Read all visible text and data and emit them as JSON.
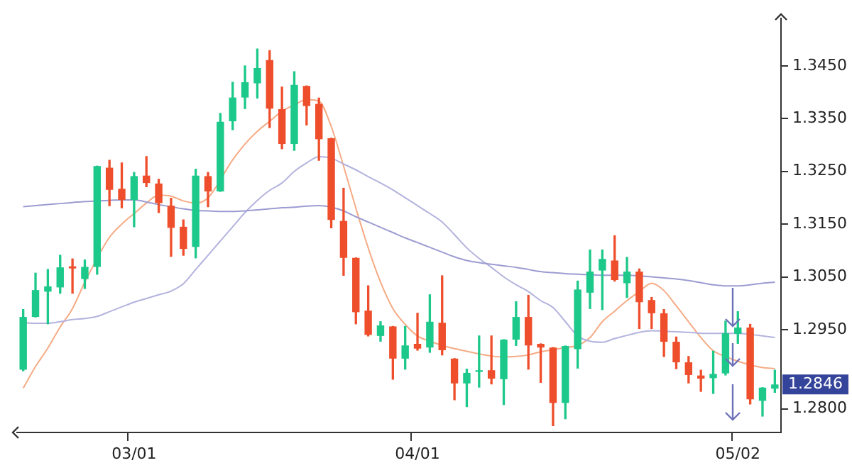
{
  "chart_data": {
    "type": "candlestick",
    "categories": [
      null,
      null,
      null,
      null,
      null,
      null,
      null,
      null,
      null,
      "03/01",
      null,
      null,
      null,
      null,
      null,
      null,
      null,
      null,
      null,
      null,
      null,
      null,
      null,
      null,
      null,
      null,
      null,
      null,
      null,
      null,
      null,
      null,
      "04/01",
      null,
      null,
      null,
      null,
      null,
      null,
      null,
      null,
      null,
      null,
      null,
      null,
      null,
      null,
      null,
      null,
      null,
      null,
      null,
      null,
      null,
      null,
      null,
      null,
      null,
      "05/02",
      null,
      null,
      null
    ],
    "ohlc": [
      [
        1.2874,
        1.2988,
        1.2872,
        1.2974
      ],
      [
        1.2974,
        1.3057,
        1.2974,
        1.3025
      ],
      [
        1.3022,
        1.3064,
        1.2961,
        1.3032
      ],
      [
        1.303,
        1.3091,
        1.3019,
        1.3068
      ],
      [
        1.307,
        1.3084,
        1.3019,
        1.3066
      ],
      [
        1.3046,
        1.3082,
        1.3028,
        1.3069
      ],
      [
        1.3069,
        1.326,
        1.3055,
        1.326
      ],
      [
        1.3257,
        1.3271,
        1.3185,
        1.3215
      ],
      [
        1.3217,
        1.3266,
        1.3181,
        1.3196
      ],
      [
        1.3196,
        1.3248,
        1.3145,
        1.3241
      ],
      [
        1.3242,
        1.3278,
        1.3221,
        1.3228
      ],
      [
        1.3227,
        1.3235,
        1.3172,
        1.319
      ],
      [
        1.3185,
        1.3199,
        1.3089,
        1.3143
      ],
      [
        1.3145,
        1.3158,
        1.3091,
        1.3103
      ],
      [
        1.3107,
        1.3254,
        1.3086,
        1.3242
      ],
      [
        1.3241,
        1.3248,
        1.3183,
        1.3212
      ],
      [
        1.3212,
        1.336,
        1.3212,
        1.3344
      ],
      [
        1.3345,
        1.3419,
        1.3329,
        1.339
      ],
      [
        1.339,
        1.345,
        1.3369,
        1.3419
      ],
      [
        1.3417,
        1.3482,
        1.3389,
        1.3446
      ],
      [
        1.3461,
        1.3479,
        1.3333,
        1.3369
      ],
      [
        1.3368,
        1.341,
        1.3293,
        1.3302
      ],
      [
        1.3302,
        1.3439,
        1.329,
        1.3414
      ],
      [
        1.3412,
        1.3412,
        1.3338,
        1.3374
      ],
      [
        1.3378,
        1.3389,
        1.3271,
        1.3311
      ],
      [
        1.3313,
        1.3313,
        1.3143,
        1.3158
      ],
      [
        1.3156,
        1.3218,
        1.3053,
        1.3086
      ],
      [
        1.3086,
        1.3086,
        1.2961,
        1.2983
      ],
      [
        1.2986,
        1.3033,
        1.2938,
        1.294
      ],
      [
        1.2938,
        1.2965,
        1.2928,
        1.2958
      ],
      [
        1.2956,
        1.2956,
        1.2856,
        1.2895
      ],
      [
        1.2895,
        1.2956,
        1.2875,
        1.292
      ],
      [
        1.2923,
        1.2981,
        1.2911,
        1.2914
      ],
      [
        1.2916,
        1.3016,
        1.2907,
        1.2965
      ],
      [
        1.2963,
        1.3052,
        1.2902,
        1.2911
      ],
      [
        1.2895,
        1.2895,
        1.2817,
        1.2848
      ],
      [
        1.2848,
        1.2875,
        1.2804,
        1.2868
      ],
      [
        1.287,
        1.2938,
        1.2841,
        1.2873
      ],
      [
        1.2873,
        1.2938,
        1.2847,
        1.2857
      ],
      [
        1.2856,
        1.2931,
        1.2808,
        1.2931
      ],
      [
        1.2931,
        1.3003,
        1.292,
        1.2974
      ],
      [
        1.2974,
        1.3015,
        1.2875,
        1.292
      ],
      [
        1.2923,
        1.2923,
        1.285,
        1.2916
      ],
      [
        1.2916,
        1.2916,
        1.2768,
        1.2811
      ],
      [
        1.2811,
        1.2919,
        1.2781,
        1.2919
      ],
      [
        1.2913,
        1.3042,
        1.2877,
        1.3026
      ],
      [
        1.302,
        1.3101,
        1.299,
        1.306
      ],
      [
        1.3062,
        1.3101,
        1.2988,
        1.3084
      ],
      [
        1.3081,
        1.3128,
        1.3042,
        1.3044
      ],
      [
        1.3038,
        1.3087,
        1.3011,
        1.306
      ],
      [
        1.306,
        1.3065,
        1.2952,
        1.3002
      ],
      [
        1.3006,
        1.3011,
        1.2952,
        1.2981
      ],
      [
        1.2981,
        1.2988,
        1.2899,
        1.2927
      ],
      [
        1.2927,
        1.2936,
        1.2876,
        1.2888
      ],
      [
        1.2888,
        1.2899,
        1.2849,
        1.2864
      ],
      [
        1.2863,
        1.2873,
        1.2833,
        1.2857
      ],
      [
        1.2858,
        1.2909,
        1.2829,
        1.2866
      ],
      [
        1.2867,
        1.2966,
        1.2864,
        1.2943
      ],
      [
        1.2942,
        1.2984,
        1.2924,
        1.2954
      ],
      [
        1.2954,
        1.296,
        1.2809,
        1.2818
      ],
      [
        1.2815,
        1.284,
        1.2786,
        1.284
      ],
      [
        1.2838,
        1.2873,
        1.2831,
        1.2846
      ]
    ],
    "colors": [
      "#1cc88a",
      "#1cc88a",
      "#1cc88a",
      "#1cc88a",
      "#ee4e2b",
      "#1cc88a",
      "#1cc88a",
      "#ee4e2b",
      "#ee4e2b",
      "#1cc88a",
      "#ee4e2b",
      "#ee4e2b",
      "#ee4e2b",
      "#ee4e2b",
      "#1cc88a",
      "#ee4e2b",
      "#1cc88a",
      "#1cc88a",
      "#1cc88a",
      "#1cc88a",
      "#ee4e2b",
      "#ee4e2b",
      "#1cc88a",
      "#ee4e2b",
      "#ee4e2b",
      "#ee4e2b",
      "#ee4e2b",
      "#ee4e2b",
      "#ee4e2b",
      "#1cc88a",
      "#ee4e2b",
      "#1cc88a",
      "#ee4e2b",
      "#1cc88a",
      "#ee4e2b",
      "#ee4e2b",
      "#1cc88a",
      "#1cc88a",
      "#ee4e2b",
      "#1cc88a",
      "#1cc88a",
      "#ee4e2b",
      "#ee4e2b",
      "#ee4e2b",
      "#1cc88a",
      "#1cc88a",
      "#1cc88a",
      "#1cc88a",
      "#ee4e2b",
      "#1cc88a",
      "#ee4e2b",
      "#ee4e2b",
      "#ee4e2b",
      "#ee4e2b",
      "#ee4e2b",
      "#ee4e2b",
      "#1cc88a",
      "#1cc88a",
      "#1cc88a",
      "#ee4e2b",
      "#1cc88a",
      "#1cc88a"
    ],
    "series": [
      {
        "type": "line",
        "color": "#9c9cd2",
        "values": [
          1.3183,
          1.3185,
          1.3187,
          1.3189,
          1.3191,
          1.3193,
          1.3194,
          1.3195,
          1.3196,
          1.3196,
          1.3192,
          1.3187,
          1.3183,
          1.3179,
          1.3176,
          1.3175,
          1.3174,
          1.3174,
          1.3175,
          1.3177,
          1.3179,
          1.3181,
          1.3182,
          1.3184,
          1.3185,
          1.3182,
          1.3175,
          1.3164,
          1.3154,
          1.3144,
          1.3134,
          1.3124,
          1.3115,
          1.3106,
          1.3097,
          1.3088,
          1.3081,
          1.3077,
          1.3074,
          1.3071,
          1.3068,
          1.3064,
          1.306,
          1.3058,
          1.3056,
          1.3055,
          1.3054,
          1.3053,
          1.3053,
          1.3053,
          1.3052,
          1.305,
          1.3048,
          1.3046,
          1.3043,
          1.3039,
          1.3035,
          1.3033,
          1.3033,
          1.3035,
          1.3038,
          1.304
        ]
      },
      {
        "type": "line",
        "color": "#b3b3de",
        "values": [
          1.2963,
          1.2962,
          1.2962,
          1.2965,
          1.2969,
          1.2971,
          1.2975,
          1.2984,
          1.2993,
          1.3002,
          1.3009,
          1.3016,
          1.3023,
          1.3037,
          1.3064,
          1.3091,
          1.3118,
          1.3145,
          1.3172,
          1.3195,
          1.3214,
          1.3228,
          1.325,
          1.3266,
          1.3278,
          1.3275,
          1.3264,
          1.3253,
          1.324,
          1.3228,
          1.3215,
          1.32,
          1.3185,
          1.317,
          1.3154,
          1.313,
          1.3105,
          1.3085,
          1.3068,
          1.305,
          1.3035,
          1.3022,
          1.3005,
          1.2992,
          1.2965,
          1.2938,
          1.2928,
          1.2926,
          1.2933,
          1.2939,
          1.2945,
          1.2948,
          1.2947,
          1.2946,
          1.2945,
          1.2943,
          1.2943,
          1.2943,
          1.2943,
          1.2941,
          1.2938,
          1.2935
        ]
      },
      {
        "type": "line",
        "color": "#f5ab85",
        "values": [
          1.2839,
          1.288,
          1.2915,
          1.2955,
          1.299,
          1.304,
          null,
          1.3125,
          1.315,
          1.317,
          1.319,
          1.3205,
          1.3203,
          1.3194,
          1.319,
          1.32,
          null,
          1.3272,
          1.3302,
          1.3326,
          1.3345,
          1.3364,
          1.3376,
          1.3386,
          1.3383,
          1.3335,
          1.326,
          1.318,
          1.3105,
          1.304,
          1.299,
          1.296,
          1.2938,
          1.2928,
          1.292,
          1.2914,
          1.2909,
          1.2904,
          1.29,
          1.2898,
          1.2899,
          1.2902,
          1.2908,
          1.2912,
          1.2916,
          1.292,
          1.2935,
          1.2965,
          1.2985,
          1.3005,
          1.3022,
          1.3038,
          1.3024,
          1.2995,
          1.2965,
          1.2935,
          1.291,
          1.2899,
          1.289,
          1.2883,
          1.2878,
          1.2876
        ]
      }
    ],
    "ylim": [
      1.2755,
      1.354
    ],
    "yticks": [
      {
        "value": 1.28,
        "label": "1.2800"
      },
      {
        "value": 1.295,
        "label": "1.2950"
      },
      {
        "value": 1.305,
        "label": "1.3050"
      },
      {
        "value": 1.315,
        "label": "1.3150"
      },
      {
        "value": 1.325,
        "label": "1.3250"
      },
      {
        "value": 1.335,
        "label": "1.3350"
      },
      {
        "value": 1.345,
        "label": "1.3450"
      }
    ],
    "annotations": [
      "1.2846"
    ],
    "grid": false,
    "legend": false
  }
}
